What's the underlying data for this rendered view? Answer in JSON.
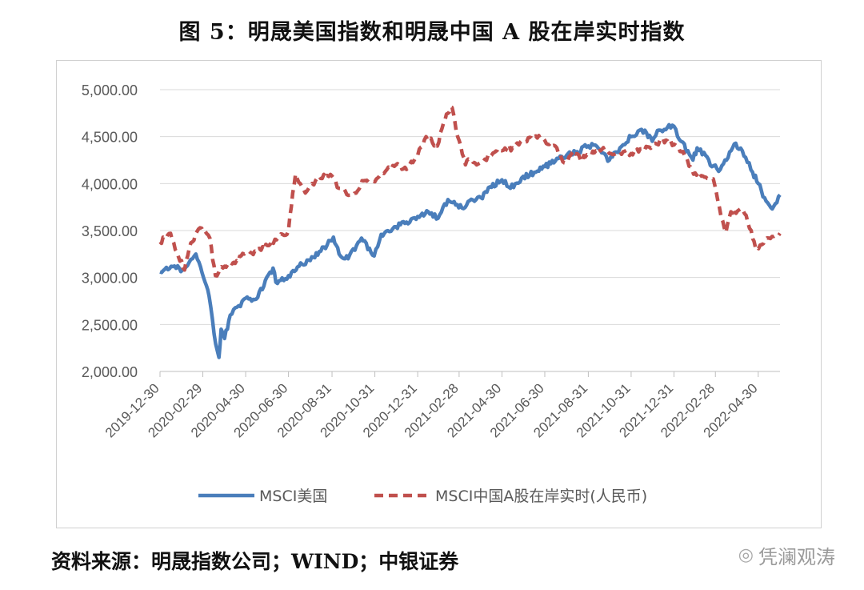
{
  "title": "图 5：明晟美国指数和明晟中国 A 股在岸实时指数",
  "source": "资料来源：明晟指数公司；WIND；中银证券",
  "watermark": "凭澜观涛",
  "chart_data": {
    "type": "line",
    "title": "图 5：明晟美国指数和明晟中国 A 股在岸实时指数",
    "xlabel": "",
    "ylabel": "",
    "ylim": [
      2000,
      5000
    ],
    "yticks": [
      "5,000.00",
      "4,500.00",
      "4,000.00",
      "3,500.00",
      "3,000.00",
      "2,500.00",
      "2,000.00"
    ],
    "yticks_values": [
      5000,
      4500,
      4000,
      3500,
      3000,
      2500,
      2000
    ],
    "xlim": [
      "2019-12-30",
      "2022-05-31"
    ],
    "xticks": [
      "2019-12-30",
      "2020-02-29",
      "2020-04-30",
      "2020-06-30",
      "2020-08-31",
      "2020-10-31",
      "2020-12-31",
      "2021-02-28",
      "2021-04-30",
      "2021-06-30",
      "2021-08-31",
      "2021-10-31",
      "2021-12-31",
      "2022-02-28",
      "2022-04-30"
    ],
    "grid": true,
    "legend_position": "bottom",
    "series": [
      {
        "name": "MSCI美国",
        "color": "#4a7ebb",
        "style": "solid",
        "points": [
          [
            "2019-12-30",
            3060
          ],
          [
            "2020-01-15",
            3120
          ],
          [
            "2020-01-31",
            3080
          ],
          [
            "2020-02-19",
            3250
          ],
          [
            "2020-03-01",
            3000
          ],
          [
            "2020-03-09",
            2800
          ],
          [
            "2020-03-16",
            2400
          ],
          [
            "2020-03-23",
            2150
          ],
          [
            "2020-03-26",
            2450
          ],
          [
            "2020-03-31",
            2350
          ],
          [
            "2020-04-08",
            2600
          ],
          [
            "2020-04-20",
            2700
          ],
          [
            "2020-04-30",
            2780
          ],
          [
            "2020-05-15",
            2770
          ],
          [
            "2020-06-08",
            3100
          ],
          [
            "2020-06-12",
            2950
          ],
          [
            "2020-06-30",
            3020
          ],
          [
            "2020-07-15",
            3120
          ],
          [
            "2020-07-31",
            3180
          ],
          [
            "2020-08-15",
            3280
          ],
          [
            "2020-09-02",
            3430
          ],
          [
            "2020-09-10",
            3250
          ],
          [
            "2020-09-23",
            3200
          ],
          [
            "2020-10-12",
            3420
          ],
          [
            "2020-10-30",
            3230
          ],
          [
            "2020-11-09",
            3460
          ],
          [
            "2020-11-30",
            3540
          ],
          [
            "2020-12-15",
            3590
          ],
          [
            "2020-12-31",
            3650
          ],
          [
            "2021-01-15",
            3700
          ],
          [
            "2021-01-29",
            3630
          ],
          [
            "2021-02-12",
            3830
          ],
          [
            "2021-03-04",
            3740
          ],
          [
            "2021-03-15",
            3820
          ],
          [
            "2021-03-31",
            3850
          ],
          [
            "2021-04-15",
            3960
          ],
          [
            "2021-04-30",
            4040
          ],
          [
            "2021-05-12",
            3950
          ],
          [
            "2021-05-28",
            4060
          ],
          [
            "2021-06-15",
            4120
          ],
          [
            "2021-06-30",
            4180
          ],
          [
            "2021-07-15",
            4240
          ],
          [
            "2021-07-31",
            4300
          ],
          [
            "2021-08-15",
            4340
          ],
          [
            "2021-08-31",
            4400
          ],
          [
            "2021-09-10",
            4410
          ],
          [
            "2021-09-30",
            4250
          ],
          [
            "2021-10-15",
            4380
          ],
          [
            "2021-10-31",
            4500
          ],
          [
            "2021-11-10",
            4560
          ],
          [
            "2021-11-22",
            4540
          ],
          [
            "2021-11-30",
            4450
          ],
          [
            "2021-12-10",
            4570
          ],
          [
            "2021-12-31",
            4610
          ],
          [
            "2022-01-10",
            4450
          ],
          [
            "2022-01-27",
            4250
          ],
          [
            "2022-02-02",
            4380
          ],
          [
            "2022-02-14",
            4300
          ],
          [
            "2022-02-23",
            4180
          ],
          [
            "2022-03-07",
            4150
          ],
          [
            "2022-03-29",
            4430
          ],
          [
            "2022-04-12",
            4280
          ],
          [
            "2022-04-22",
            4120
          ],
          [
            "2022-04-30",
            4000
          ],
          [
            "2022-05-09",
            3850
          ],
          [
            "2022-05-20",
            3730
          ],
          [
            "2022-05-31",
            3880
          ]
        ]
      },
      {
        "name": "MSCI中国A股在岸实时(人民币)",
        "color": "#c0504d",
        "style": "dashed",
        "points": [
          [
            "2019-12-30",
            3380
          ],
          [
            "2020-01-14",
            3470
          ],
          [
            "2020-01-23",
            3270
          ],
          [
            "2020-02-03",
            3080
          ],
          [
            "2020-02-12",
            3370
          ],
          [
            "2020-02-25",
            3530
          ],
          [
            "2020-03-10",
            3420
          ],
          [
            "2020-03-18",
            3020
          ],
          [
            "2020-03-31",
            3120
          ],
          [
            "2020-04-15",
            3150
          ],
          [
            "2020-04-30",
            3260
          ],
          [
            "2020-05-15",
            3270
          ],
          [
            "2020-05-31",
            3340
          ],
          [
            "2020-06-15",
            3420
          ],
          [
            "2020-06-30",
            3500
          ],
          [
            "2020-07-06",
            3900
          ],
          [
            "2020-07-10",
            4100
          ],
          [
            "2020-07-24",
            3900
          ],
          [
            "2020-08-10",
            4060
          ],
          [
            "2020-08-31",
            4080
          ],
          [
            "2020-09-10",
            3950
          ],
          [
            "2020-09-30",
            3880
          ],
          [
            "2020-10-15",
            4030
          ],
          [
            "2020-10-31",
            4020
          ],
          [
            "2020-11-15",
            4130
          ],
          [
            "2020-11-30",
            4200
          ],
          [
            "2020-12-15",
            4150
          ],
          [
            "2020-12-31",
            4300
          ],
          [
            "2021-01-12",
            4500
          ],
          [
            "2021-01-28",
            4400
          ],
          [
            "2021-02-10",
            4740
          ],
          [
            "2021-02-18",
            4810
          ],
          [
            "2021-02-26",
            4500
          ],
          [
            "2021-03-09",
            4200
          ],
          [
            "2021-03-15",
            4250
          ],
          [
            "2021-03-25",
            4200
          ],
          [
            "2021-04-15",
            4300
          ],
          [
            "2021-04-30",
            4350
          ],
          [
            "2021-05-15",
            4380
          ],
          [
            "2021-05-31",
            4450
          ],
          [
            "2021-06-15",
            4500
          ],
          [
            "2021-06-30",
            4460
          ],
          [
            "2021-07-15",
            4400
          ],
          [
            "2021-07-28",
            4220
          ],
          [
            "2021-08-10",
            4350
          ],
          [
            "2021-08-20",
            4250
          ],
          [
            "2021-08-31",
            4300
          ],
          [
            "2021-09-15",
            4380
          ],
          [
            "2021-09-30",
            4320
          ],
          [
            "2021-10-15",
            4340
          ],
          [
            "2021-10-31",
            4320
          ],
          [
            "2021-11-15",
            4370
          ],
          [
            "2021-11-30",
            4400
          ],
          [
            "2021-12-13",
            4460
          ],
          [
            "2021-12-31",
            4420
          ],
          [
            "2022-01-15",
            4300
          ],
          [
            "2022-01-28",
            4100
          ],
          [
            "2022-02-10",
            4080
          ],
          [
            "2022-02-25",
            4050
          ],
          [
            "2022-03-08",
            3650
          ],
          [
            "2022-03-15",
            3480
          ],
          [
            "2022-03-22",
            3700
          ],
          [
            "2022-04-08",
            3720
          ],
          [
            "2022-04-20",
            3500
          ],
          [
            "2022-04-26",
            3320
          ],
          [
            "2022-05-05",
            3350
          ],
          [
            "2022-05-15",
            3420
          ],
          [
            "2022-05-31",
            3470
          ]
        ]
      }
    ]
  }
}
